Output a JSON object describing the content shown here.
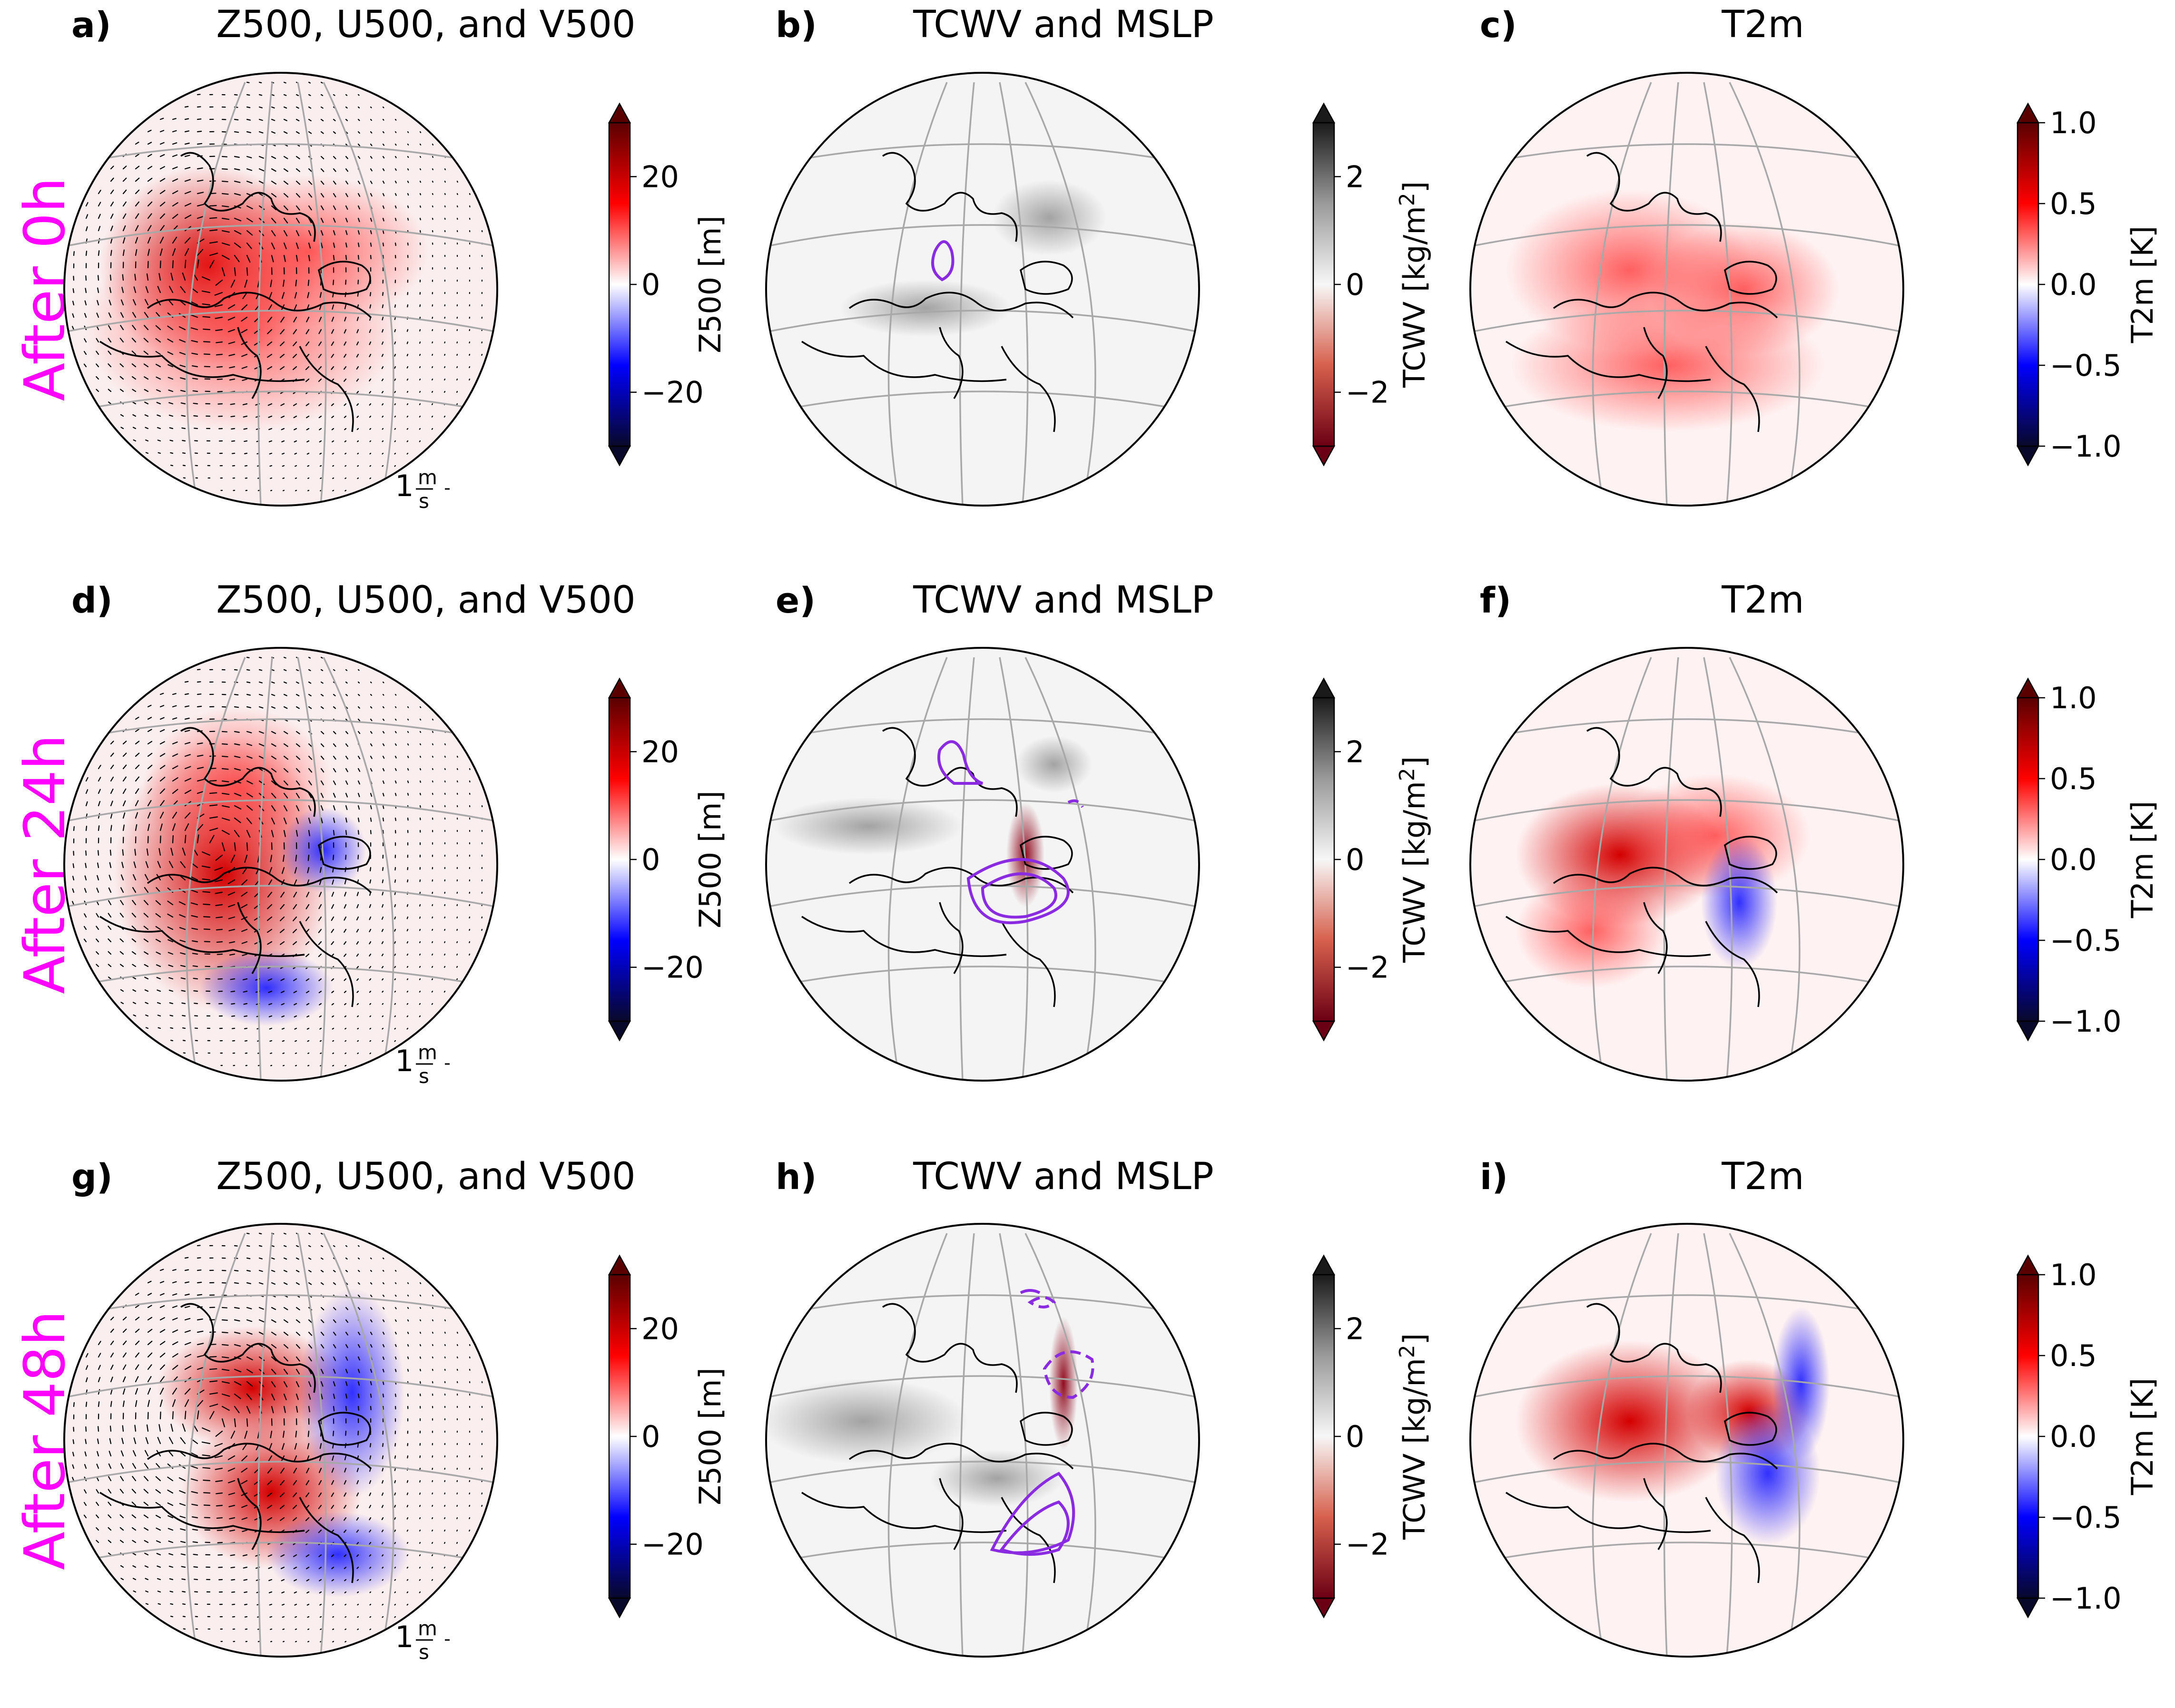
{
  "figure": {
    "row_labels": [
      "After 0h",
      "After 24h",
      "After 48h"
    ],
    "row_label_color": "#ff00ff",
    "speed_key": {
      "value": "1",
      "unit_num": "m",
      "unit_den": "s"
    }
  },
  "colorbars": {
    "z500": {
      "label": "Z500 [m]",
      "ticks": [
        "20",
        "0",
        "−20"
      ],
      "range": [
        -30,
        30
      ],
      "tick_values": [
        20,
        0,
        -20
      ],
      "cmap": [
        "#08082a",
        "#0000ff",
        "#ffffff",
        "#ff0000",
        "#5a0000"
      ]
    },
    "tcwv": {
      "label_main": "TCWV [kg/m",
      "label_sup": "2",
      "label_end": "]",
      "ticks": [
        "2",
        "0",
        "−2"
      ],
      "range": [
        -3,
        3
      ],
      "tick_values": [
        2,
        0,
        -2
      ],
      "cmap": [
        "#6b0014",
        "#d6604d",
        "#f7f7f7",
        "#9a9a9a",
        "#1a1a1a"
      ]
    },
    "t2m": {
      "label": "T2m [K]",
      "ticks": [
        "1.0",
        "0.5",
        "0.0",
        "−0.5",
        "−1.0"
      ],
      "range": [
        -1,
        1
      ],
      "tick_values": [
        1,
        0.5,
        0,
        -0.5,
        -1
      ],
      "cmap": [
        "#08082a",
        "#0000ff",
        "#ffffff",
        "#ff0000",
        "#5a0000"
      ]
    }
  },
  "chart_data": [
    {
      "type": "heatmap",
      "panel": "a)",
      "title": "Z500, U500, and V500",
      "variable": "z500",
      "lead_time": "After 0h",
      "features": "single positive Z500 anomaly over central Europe with anticyclonic wind vectors"
    },
    {
      "type": "heatmap",
      "panel": "b)",
      "title": "TCWV and MSLP",
      "variable": "tcwv",
      "lead_time": "After 0h",
      "features": "near-zero TCWV; one small MSLP contour over Baltic region"
    },
    {
      "type": "heatmap",
      "panel": "c)",
      "title": "T2m",
      "variable": "t2m",
      "lead_time": "After 0h",
      "features": "weak positive T2m anomaly over Europe"
    },
    {
      "type": "heatmap",
      "panel": "d)",
      "title": "Z500, U500, and V500",
      "variable": "z500",
      "lead_time": "After 24h",
      "features": "positive anomaly over central Europe/Mediterranean, small negative anomaly east"
    },
    {
      "type": "heatmap",
      "panel": "e)",
      "title": "TCWV and MSLP",
      "variable": "tcwv",
      "lead_time": "After 24h",
      "features": "TCWV dipole streak near Black Sea; MSLP contours over Black Sea and Baltic"
    },
    {
      "type": "heatmap",
      "panel": "f)",
      "title": "T2m",
      "variable": "t2m",
      "lead_time": "After 24h",
      "features": "positive T2m over Europe, negative streak over eastern Mediterranean"
    },
    {
      "type": "heatmap",
      "panel": "g)",
      "title": "Z500, U500, and V500",
      "variable": "z500",
      "lead_time": "After 48h",
      "features": "positive anomalies over Europe and Mediterranean, negative band to the east"
    },
    {
      "type": "heatmap",
      "panel": "h)",
      "title": "TCWV and MSLP",
      "variable": "tcwv",
      "lead_time": "After 48h",
      "features": "TCWV streak extending north-east from Middle East; MSLP contours"
    },
    {
      "type": "heatmap",
      "panel": "i)",
      "title": "T2m",
      "variable": "t2m",
      "lead_time": "After 48h",
      "features": "positive T2m over Europe, strong negative arc over Caspian region"
    }
  ]
}
